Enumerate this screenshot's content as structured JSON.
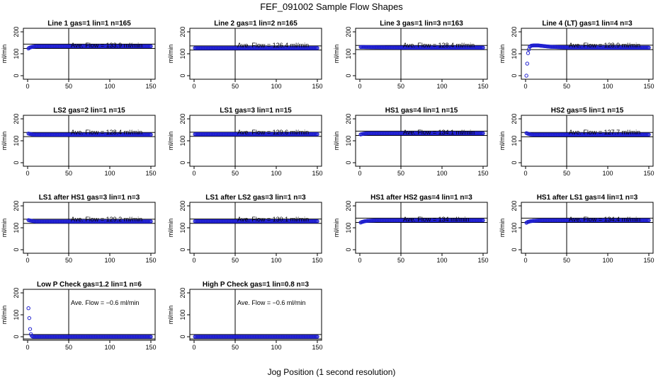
{
  "figure": {
    "title": "FEF_091002  Sample Flow Shapes",
    "xlabel": "Jog Position (1 second resolution)"
  },
  "colors": {
    "points": "#1f1fd0",
    "axis": "#000000"
  },
  "chart_data": [
    {
      "type": "scatter",
      "title": "Line 1 gas=1 lin=1 n=165",
      "ylabel": "ml/min",
      "xlim": [
        0,
        150
      ],
      "ylim": [
        0,
        200
      ],
      "xticks": [
        0,
        50,
        100,
        150
      ],
      "yticks": [
        0,
        100,
        200
      ],
      "annotation": "Ave. Flow =  133.9  ml/min",
      "hlines": [
        124,
        144
      ],
      "vline": 50,
      "series": [
        {
          "x": [
            1,
            2,
            4,
            6,
            8,
            10,
            15,
            150
          ],
          "y": [
            124,
            127,
            130,
            132,
            133,
            134,
            134,
            134
          ]
        }
      ]
    },
    {
      "type": "scatter",
      "title": "Line 2 gas=1 lin=2 n=165",
      "ylabel": "ml/min",
      "xlim": [
        0,
        150
      ],
      "ylim": [
        0,
        200
      ],
      "xticks": [
        0,
        50,
        100,
        150
      ],
      "yticks": [
        0,
        100,
        200
      ],
      "annotation": "Ave. Flow =  126.4  ml/min",
      "hlines": [
        117,
        136
      ],
      "vline": 50,
      "series": [
        {
          "x": [
            1,
            150
          ],
          "y": [
            126,
            126
          ]
        }
      ]
    },
    {
      "type": "scatter",
      "title": "Line 3 gas=1 lin=3 n=163",
      "ylabel": "ml/min",
      "xlim": [
        0,
        150
      ],
      "ylim": [
        0,
        200
      ],
      "xticks": [
        0,
        50,
        100,
        150
      ],
      "yticks": [
        0,
        100,
        200
      ],
      "annotation": "Ave. Flow =  128.4  ml/min",
      "hlines": [
        119,
        138
      ],
      "vline": 50,
      "series": [
        {
          "x": [
            1,
            30,
            60,
            150
          ],
          "y": [
            131,
            129,
            128,
            128
          ]
        }
      ]
    },
    {
      "type": "scatter",
      "title": "Line 4 (LT) gas=1 lin=4 n=3",
      "ylabel": "ml/min",
      "xlim": [
        0,
        150
      ],
      "ylim": [
        0,
        200
      ],
      "xticks": [
        0,
        50,
        100,
        150
      ],
      "yticks": [
        0,
        100,
        200
      ],
      "annotation": "Ave. Flow =  128.9  ml/min",
      "hlines": [
        119,
        139
      ],
      "vline": 50,
      "series": [
        {
          "x": [
            1,
            2,
            3,
            4,
            5,
            7,
            10,
            15,
            30,
            50,
            150
          ],
          "y": [
            0,
            55,
            103,
            120,
            132,
            137,
            138,
            138,
            132,
            129,
            128
          ]
        }
      ]
    },
    {
      "type": "scatter",
      "title": "LS2 gas=2 lin=1 n=15",
      "ylabel": "ml/min",
      "xlim": [
        0,
        150
      ],
      "ylim": [
        0,
        200
      ],
      "xticks": [
        0,
        50,
        100,
        150
      ],
      "yticks": [
        0,
        100,
        200
      ],
      "annotation": "Ave. Flow =  128.4  ml/min",
      "hlines": [
        119,
        138
      ],
      "vline": 50,
      "series": [
        {
          "x": [
            1,
            3,
            6,
            10,
            150
          ],
          "y": [
            133,
            131,
            129,
            128,
            128
          ]
        }
      ]
    },
    {
      "type": "scatter",
      "title": "LS1 gas=3 lin=1 n=15",
      "ylabel": "ml/min",
      "xlim": [
        0,
        150
      ],
      "ylim": [
        0,
        200
      ],
      "xticks": [
        0,
        50,
        100,
        150
      ],
      "yticks": [
        0,
        100,
        200
      ],
      "annotation": "Ave. Flow =  129.6  ml/min",
      "hlines": [
        120,
        139
      ],
      "vline": 50,
      "series": [
        {
          "x": [
            1,
            150
          ],
          "y": [
            130,
            130
          ]
        }
      ]
    },
    {
      "type": "scatter",
      "title": "HS1 gas=4 lin=1 n=15",
      "ylabel": "ml/min",
      "xlim": [
        0,
        150
      ],
      "ylim": [
        0,
        200
      ],
      "xticks": [
        0,
        50,
        100,
        150
      ],
      "yticks": [
        0,
        100,
        200
      ],
      "annotation": "Ave. Flow =  134.1  ml/min",
      "hlines": [
        124,
        144
      ],
      "vline": 50,
      "series": [
        {
          "x": [
            1,
            3,
            6,
            10,
            150
          ],
          "y": [
            129,
            131,
            133,
            134,
            134
          ]
        }
      ]
    },
    {
      "type": "scatter",
      "title": "HS2 gas=5 lin=1 n=15",
      "ylabel": "ml/min",
      "xlim": [
        0,
        150
      ],
      "ylim": [
        0,
        200
      ],
      "xticks": [
        0,
        50,
        100,
        150
      ],
      "yticks": [
        0,
        100,
        200
      ],
      "annotation": "Ave. Flow =  127.7  ml/min",
      "hlines": [
        118,
        138
      ],
      "vline": 50,
      "series": [
        {
          "x": [
            1,
            3,
            6,
            10,
            150
          ],
          "y": [
            135,
            132,
            129,
            128,
            128
          ]
        }
      ]
    },
    {
      "type": "scatter",
      "title": "LS1 after HS1 gas=3 lin=1 n=3",
      "ylabel": "ml/min",
      "xlim": [
        0,
        150
      ],
      "ylim": [
        0,
        200
      ],
      "xticks": [
        0,
        50,
        100,
        150
      ],
      "yticks": [
        0,
        100,
        200
      ],
      "annotation": "Ave. Flow =  129.2  ml/min",
      "hlines": [
        120,
        139
      ],
      "vline": 50,
      "series": [
        {
          "x": [
            1,
            3,
            6,
            10,
            150
          ],
          "y": [
            135,
            133,
            131,
            129,
            129
          ]
        }
      ]
    },
    {
      "type": "scatter",
      "title": "LS1 after LS2 gas=3 lin=1 n=3",
      "ylabel": "ml/min",
      "xlim": [
        0,
        150
      ],
      "ylim": [
        0,
        200
      ],
      "xticks": [
        0,
        50,
        100,
        150
      ],
      "yticks": [
        0,
        100,
        200
      ],
      "annotation": "Ave. Flow =  130.1  ml/min",
      "hlines": [
        120,
        140
      ],
      "vline": 50,
      "series": [
        {
          "x": [
            1,
            150
          ],
          "y": [
            130,
            130
          ]
        }
      ]
    },
    {
      "type": "scatter",
      "title": "HS1 after HS2 gas=4 lin=1 n=3",
      "ylabel": "ml/min",
      "xlim": [
        0,
        150
      ],
      "ylim": [
        0,
        200
      ],
      "xticks": [
        0,
        50,
        100,
        150
      ],
      "yticks": [
        0,
        100,
        200
      ],
      "annotation": "Ave. Flow =  134  ml/min",
      "hlines": [
        124,
        144
      ],
      "vline": 50,
      "series": [
        {
          "x": [
            1,
            3,
            6,
            10,
            20,
            150
          ],
          "y": [
            124,
            127,
            130,
            132,
            134,
            134
          ]
        }
      ]
    },
    {
      "type": "scatter",
      "title": "HS1 after LS1 gas=4 lin=1 n=3",
      "ylabel": "ml/min",
      "xlim": [
        0,
        150
      ],
      "ylim": [
        0,
        200
      ],
      "xticks": [
        0,
        50,
        100,
        150
      ],
      "yticks": [
        0,
        100,
        200
      ],
      "annotation": "Ave. Flow =  134.4  ml/min",
      "hlines": [
        124,
        144
      ],
      "vline": 50,
      "series": [
        {
          "x": [
            1,
            3,
            6,
            10,
            20,
            150
          ],
          "y": [
            123,
            127,
            130,
            132,
            134,
            134
          ]
        }
      ]
    },
    {
      "type": "scatter",
      "title": "Low P Check gas=1.2 lin=1 n=6",
      "ylabel": "ml/min",
      "xlim": [
        0,
        150
      ],
      "ylim": [
        0,
        200
      ],
      "xticks": [
        0,
        50,
        100,
        150
      ],
      "yticks": [
        0,
        100,
        200
      ],
      "annotation": "Ave. Flow =  −0.6  ml/min",
      "hlines": [
        -10,
        10
      ],
      "vline": 50,
      "series": [
        {
          "x": [
            1,
            2,
            3,
            4,
            5,
            6,
            8,
            12,
            150
          ],
          "y": [
            130,
            85,
            35,
            12,
            4,
            1,
            0,
            0,
            0
          ]
        }
      ]
    },
    {
      "type": "scatter",
      "title": "High P Check gas=1 lin=0.8 n=3",
      "ylabel": "ml/min",
      "xlim": [
        0,
        150
      ],
      "ylim": [
        0,
        200
      ],
      "xticks": [
        0,
        50,
        100,
        150
      ],
      "yticks": [
        0,
        100,
        200
      ],
      "annotation": "Ave. Flow =  −0.6  ml/min",
      "hlines": [
        -10,
        10
      ],
      "vline": 50,
      "series": [
        {
          "x": [
            1,
            150
          ],
          "y": [
            0,
            0
          ]
        }
      ]
    }
  ]
}
